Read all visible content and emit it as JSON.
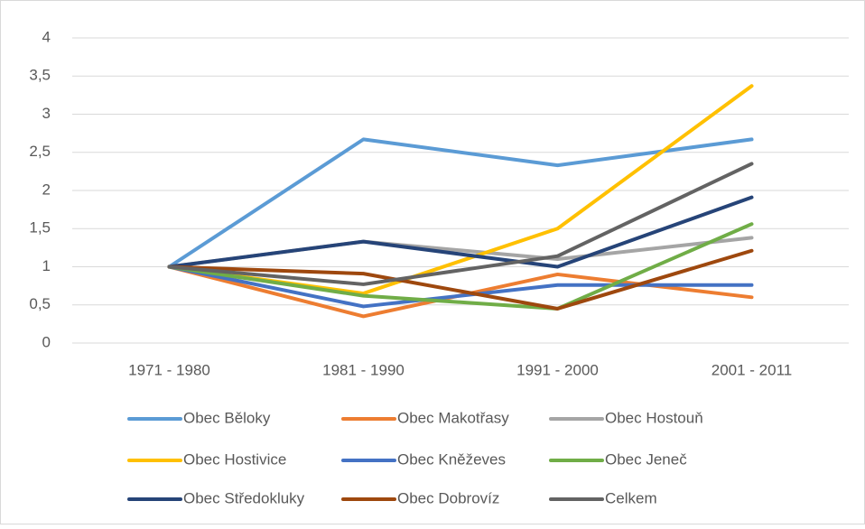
{
  "chart_data": {
    "type": "line",
    "categories": [
      "1971 - 1980",
      "1981 - 1990",
      "1991 - 2000",
      "2001 - 2011"
    ],
    "series": [
      {
        "name": "Obec Běloky",
        "color": "#5b9bd5",
        "values": [
          1,
          2.67,
          2.33,
          2.67
        ]
      },
      {
        "name": "Obec Makotřasy",
        "color": "#ed7d31",
        "values": [
          1,
          0.35,
          0.9,
          0.6
        ]
      },
      {
        "name": "Obec Hostouň",
        "color": "#a5a5a5",
        "values": [
          1,
          1.33,
          1.1,
          1.38
        ]
      },
      {
        "name": "Obec Hostivice",
        "color": "#ffc000",
        "values": [
          1,
          0.65,
          1.5,
          3.37
        ]
      },
      {
        "name": "Obec Kněževes",
        "color": "#4472c4",
        "values": [
          1,
          0.48,
          0.76,
          0.76
        ]
      },
      {
        "name": "Obec Jeneč",
        "color": "#70ad47",
        "values": [
          1,
          0.62,
          0.45,
          1.56
        ]
      },
      {
        "name": "Obec Středokluky",
        "color": "#264478",
        "values": [
          1,
          1.33,
          1.0,
          1.91
        ]
      },
      {
        "name": "Obec Dobrovíz",
        "color": "#9e480e",
        "values": [
          1,
          0.91,
          0.45,
          1.21
        ]
      },
      {
        "name": "Celkem",
        "color": "#636363",
        "values": [
          1,
          0.77,
          1.14,
          2.35
        ]
      }
    ],
    "ylim": [
      0,
      4
    ],
    "yticks": [
      0,
      {
        "value": 0.5,
        "label": "0,5"
      },
      1,
      {
        "value": 1.5,
        "label": "1,5"
      },
      2,
      {
        "value": 2.5,
        "label": "2,5"
      },
      3,
      {
        "value": 3.5,
        "label": "3,5"
      },
      4
    ],
    "grid": true,
    "legend": "bottom"
  }
}
